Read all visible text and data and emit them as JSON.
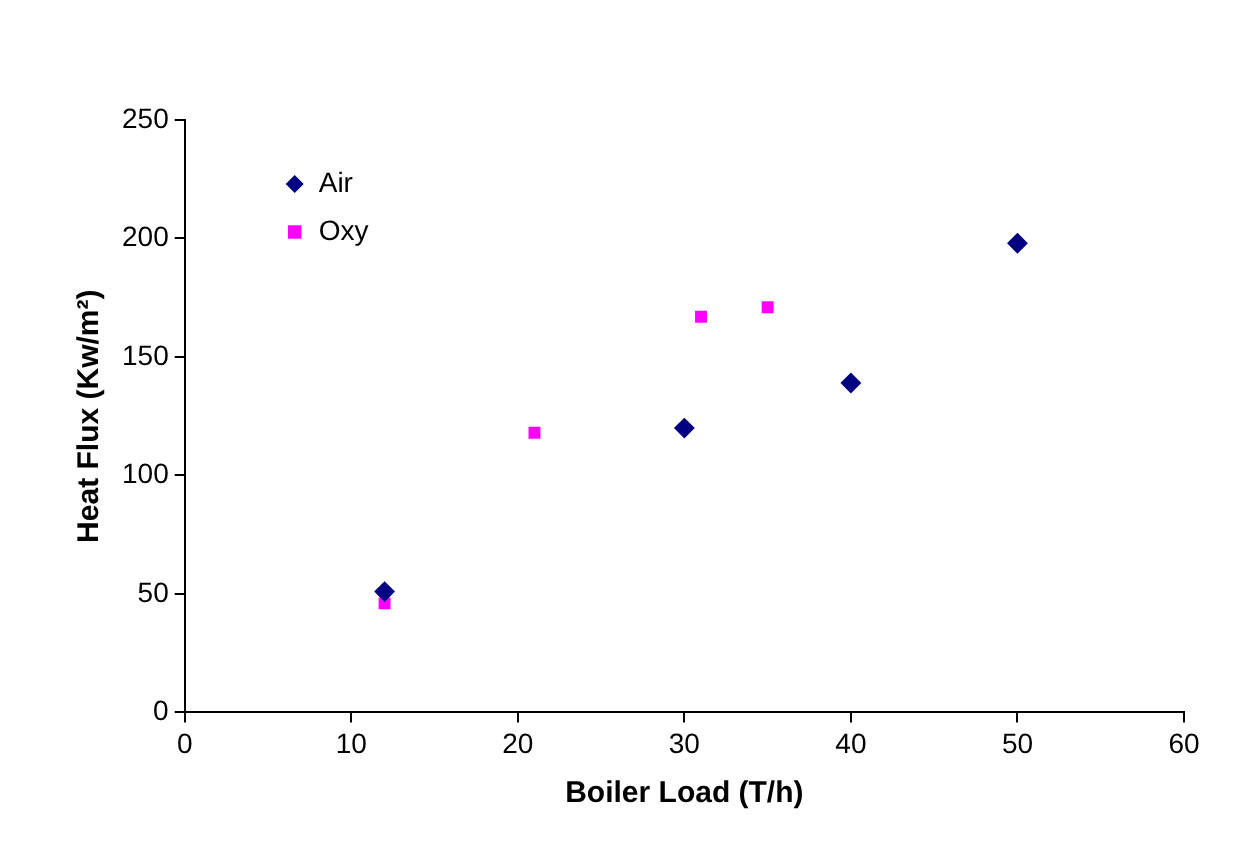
{
  "chart_data": {
    "type": "scatter",
    "xlabel": "Boiler Load (T/h)",
    "ylabel": "Heat Flux (Kw/m²)",
    "series": [
      {
        "name": "Air",
        "color": "#000080",
        "marker": "diamond",
        "x": [
          12,
          30,
          40,
          50
        ],
        "values": [
          51,
          120,
          139,
          198
        ]
      },
      {
        "name": "Oxy",
        "color": "#ff00ff",
        "marker": "square",
        "x": [
          12,
          21,
          31,
          35
        ],
        "values": [
          46,
          118,
          167,
          171
        ]
      }
    ],
    "xlim": [
      0,
      60
    ],
    "xticks": [
      0,
      10,
      20,
      30,
      40,
      50,
      60
    ],
    "ylim": [
      0,
      250
    ],
    "yticks": [
      0,
      50,
      100,
      150,
      200,
      250
    ],
    "grid": false,
    "legend": "top left"
  }
}
